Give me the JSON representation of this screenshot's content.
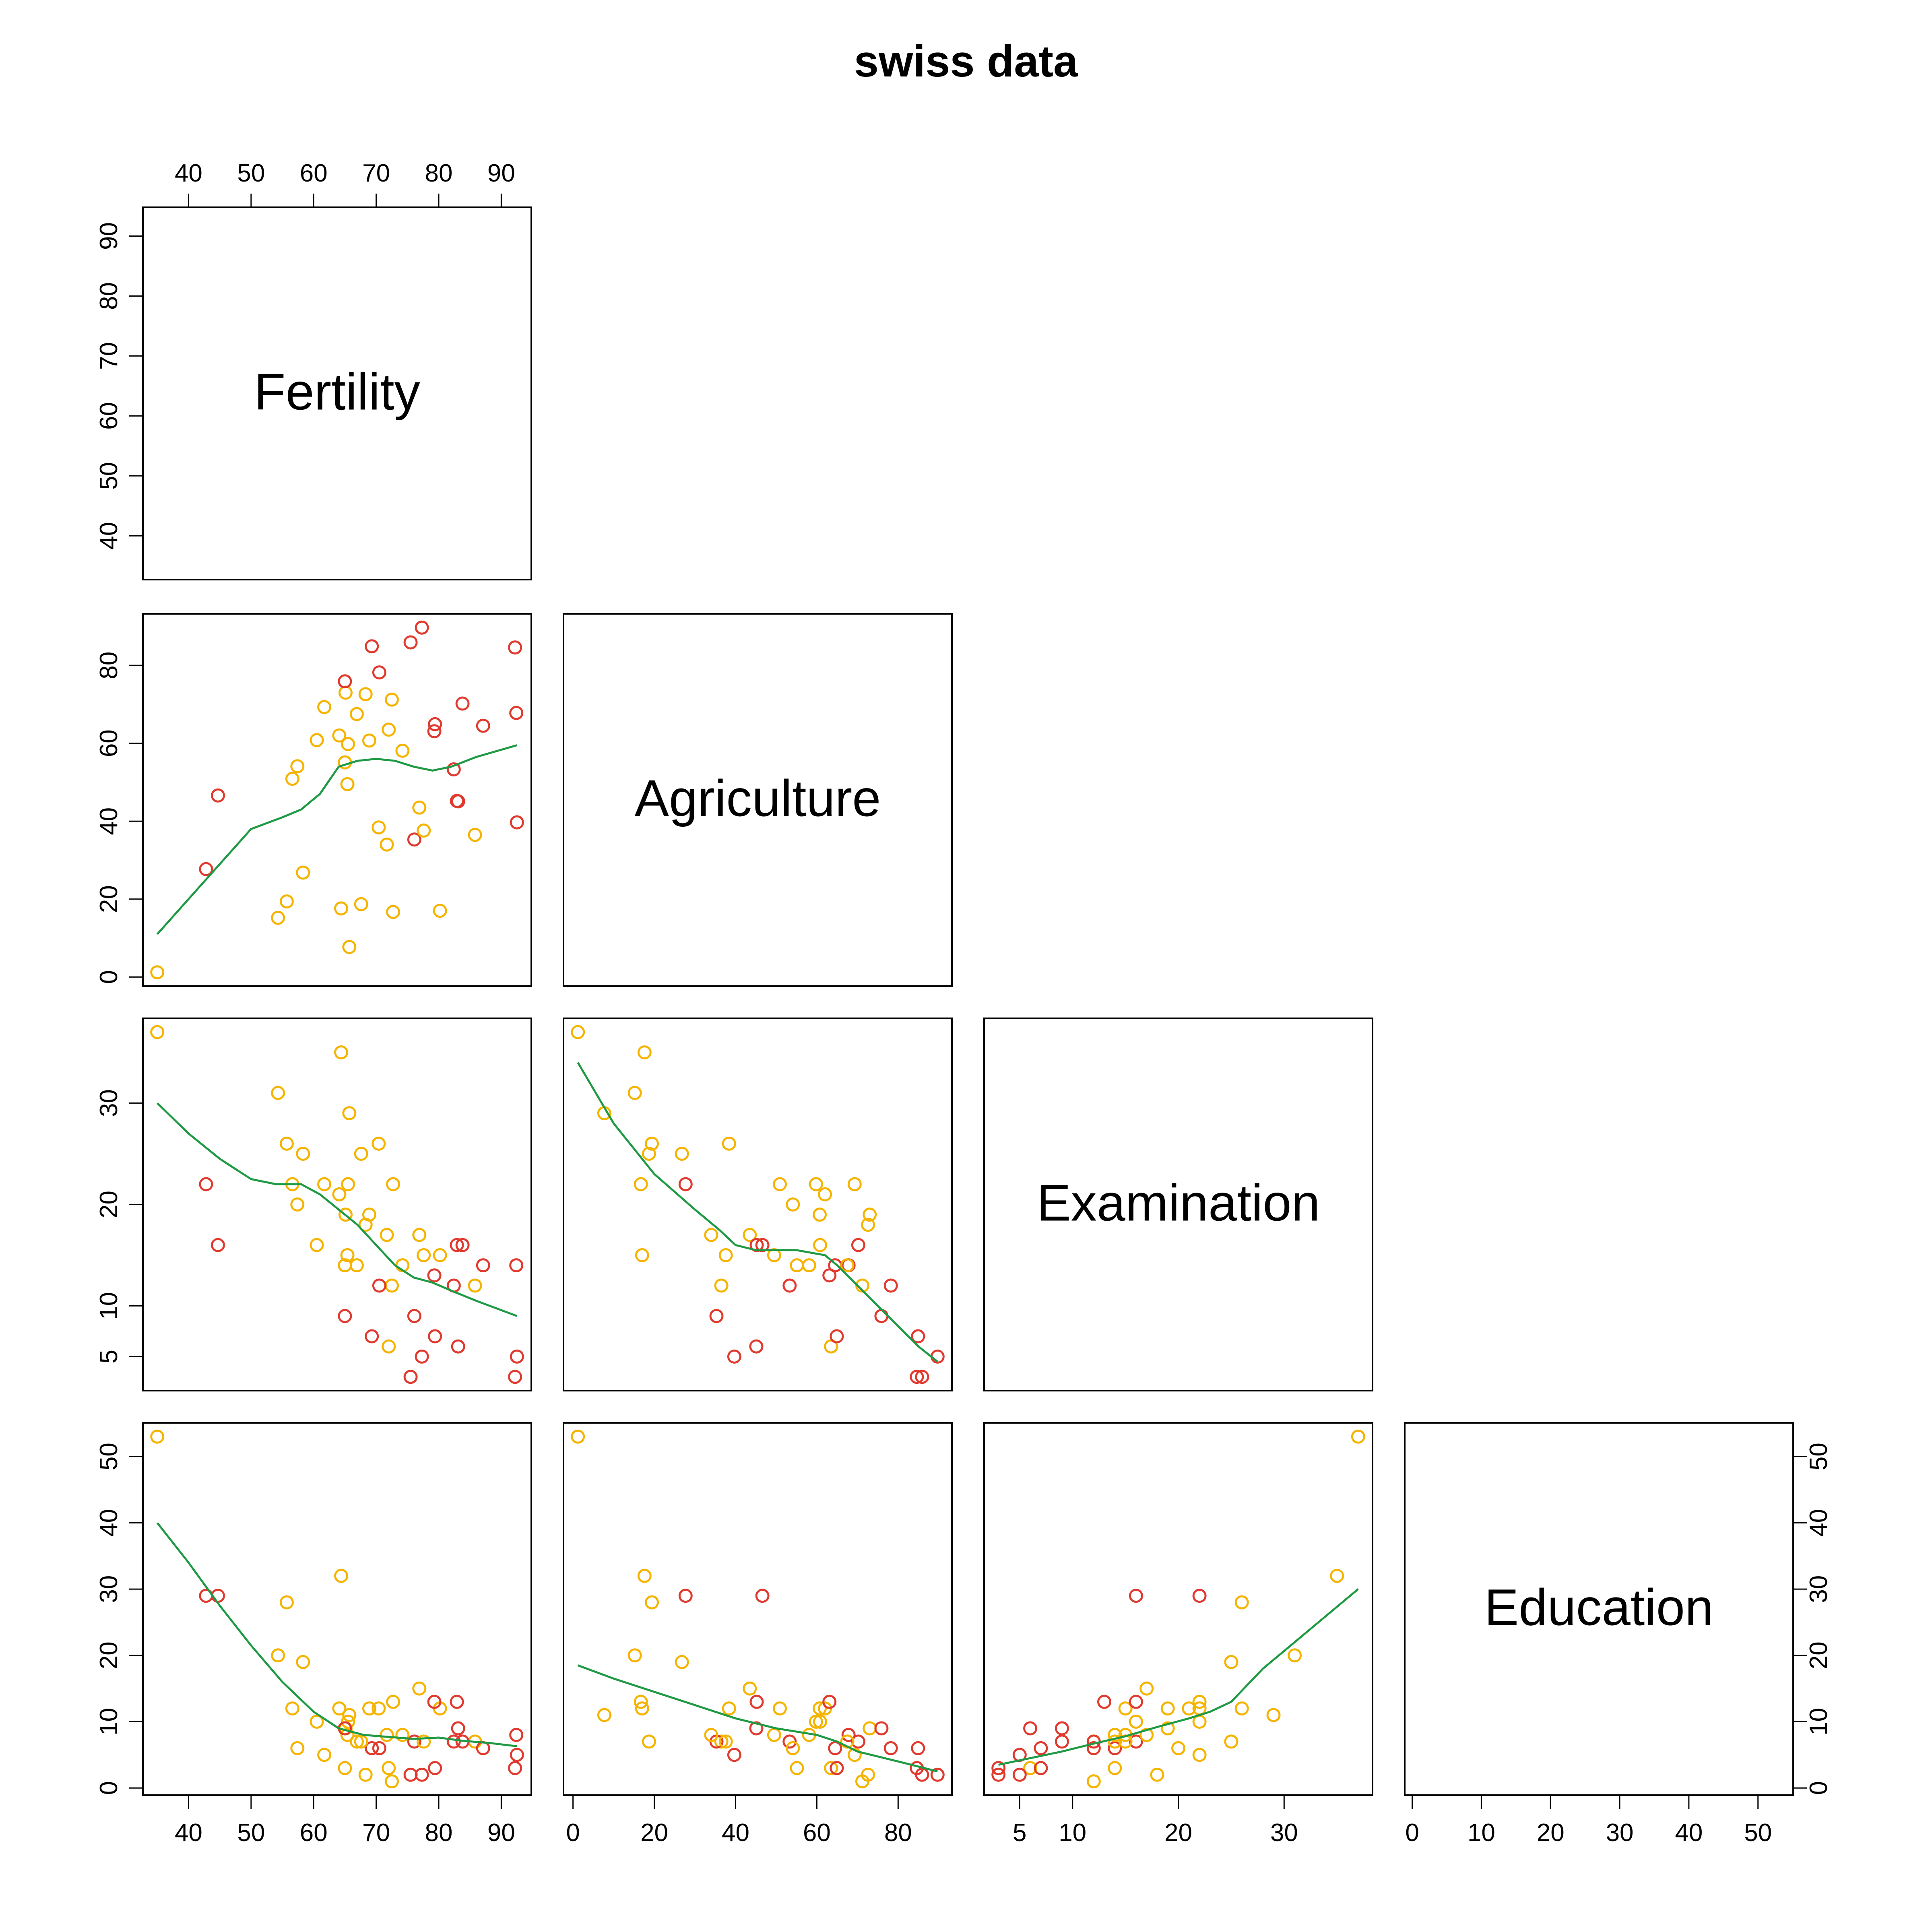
{
  "title": "swiss data",
  "variables": [
    "Fertility",
    "Agriculture",
    "Examination",
    "Education"
  ],
  "colors": {
    "low_group": "#F5B400",
    "high_group": "#E03A2F",
    "smoother": "#1F9A44",
    "frame": "#000000"
  },
  "axes": {
    "Fertility": {
      "ticks": [
        40,
        50,
        60,
        70,
        80,
        90
      ],
      "range": [
        35,
        92.5
      ]
    },
    "Agriculture": {
      "ticks": [
        0,
        20,
        40,
        60,
        80
      ],
      "range": [
        1.2,
        89.7
      ]
    },
    "Examination": {
      "ticks": [
        5,
        10,
        20,
        30
      ],
      "range": [
        3,
        37
      ]
    },
    "Education": {
      "ticks": [
        0,
        10,
        20,
        30,
        40,
        50
      ],
      "range": [
        1,
        53
      ]
    }
  },
  "chart_data": {
    "type": "scatter",
    "title": "swiss data",
    "matrix": "lower-triangle pairs plot with lowess smoother",
    "groups": [
      "yellow",
      "red"
    ],
    "observations": [
      {
        "Fertility": 80.2,
        "Agriculture": 17.0,
        "Examination": 15,
        "Education": 12,
        "group": "yellow"
      },
      {
        "Fertility": 83.1,
        "Agriculture": 45.1,
        "Examination": 6,
        "Education": 9,
        "group": "red"
      },
      {
        "Fertility": 92.5,
        "Agriculture": 39.7,
        "Examination": 5,
        "Education": 5,
        "group": "red"
      },
      {
        "Fertility": 85.8,
        "Agriculture": 36.5,
        "Examination": 12,
        "Education": 7,
        "group": "yellow"
      },
      {
        "Fertility": 76.9,
        "Agriculture": 43.5,
        "Examination": 17,
        "Education": 15,
        "group": "yellow"
      },
      {
        "Fertility": 76.1,
        "Agriculture": 35.3,
        "Examination": 9,
        "Education": 7,
        "group": "red"
      },
      {
        "Fertility": 83.8,
        "Agriculture": 70.2,
        "Examination": 16,
        "Education": 7,
        "group": "red"
      },
      {
        "Fertility": 92.4,
        "Agriculture": 67.8,
        "Examination": 14,
        "Education": 8,
        "group": "red"
      },
      {
        "Fertility": 82.4,
        "Agriculture": 53.3,
        "Examination": 12,
        "Education": 7,
        "group": "red"
      },
      {
        "Fertility": 82.9,
        "Agriculture": 45.2,
        "Examination": 16,
        "Education": 13,
        "group": "red"
      },
      {
        "Fertility": 87.1,
        "Agriculture": 64.5,
        "Examination": 14,
        "Education": 6,
        "group": "red"
      },
      {
        "Fertility": 64.1,
        "Agriculture": 62.0,
        "Examination": 21,
        "Education": 12,
        "group": "yellow"
      },
      {
        "Fertility": 66.9,
        "Agriculture": 67.5,
        "Examination": 14,
        "Education": 7,
        "group": "yellow"
      },
      {
        "Fertility": 68.9,
        "Agriculture": 60.7,
        "Examination": 19,
        "Education": 12,
        "group": "yellow"
      },
      {
        "Fertility": 61.7,
        "Agriculture": 69.3,
        "Examination": 22,
        "Education": 5,
        "group": "yellow"
      },
      {
        "Fertility": 68.3,
        "Agriculture": 72.6,
        "Examination": 18,
        "Education": 2,
        "group": "yellow"
      },
      {
        "Fertility": 71.7,
        "Agriculture": 34.0,
        "Examination": 17,
        "Education": 8,
        "group": "yellow"
      },
      {
        "Fertility": 55.7,
        "Agriculture": 19.4,
        "Examination": 26,
        "Education": 28,
        "group": "yellow"
      },
      {
        "Fertility": 54.3,
        "Agriculture": 15.2,
        "Examination": 31,
        "Education": 20,
        "group": "yellow"
      },
      {
        "Fertility": 65.1,
        "Agriculture": 73.0,
        "Examination": 19,
        "Education": 9,
        "group": "yellow"
      },
      {
        "Fertility": 65.5,
        "Agriculture": 59.8,
        "Examination": 22,
        "Education": 10,
        "group": "yellow"
      },
      {
        "Fertility": 65.0,
        "Agriculture": 55.1,
        "Examination": 14,
        "Education": 3,
        "group": "yellow"
      },
      {
        "Fertility": 56.6,
        "Agriculture": 50.9,
        "Examination": 22,
        "Education": 12,
        "group": "yellow"
      },
      {
        "Fertility": 57.4,
        "Agriculture": 54.1,
        "Examination": 20,
        "Education": 6,
        "group": "yellow"
      },
      {
        "Fertility": 72.5,
        "Agriculture": 71.2,
        "Examination": 12,
        "Education": 1,
        "group": "yellow"
      },
      {
        "Fertility": 74.2,
        "Agriculture": 58.1,
        "Examination": 14,
        "Education": 8,
        "group": "yellow"
      },
      {
        "Fertility": 72.0,
        "Agriculture": 63.5,
        "Examination": 6,
        "Education": 3,
        "group": "yellow"
      },
      {
        "Fertility": 60.5,
        "Agriculture": 60.8,
        "Examination": 16,
        "Education": 10,
        "group": "yellow"
      },
      {
        "Fertility": 58.3,
        "Agriculture": 26.8,
        "Examination": 25,
        "Education": 19,
        "group": "yellow"
      },
      {
        "Fertility": 65.4,
        "Agriculture": 49.5,
        "Examination": 15,
        "Education": 8,
        "group": "yellow"
      },
      {
        "Fertility": 75.5,
        "Agriculture": 85.9,
        "Examination": 3,
        "Education": 2,
        "group": "red"
      },
      {
        "Fertility": 69.3,
        "Agriculture": 84.9,
        "Examination": 7,
        "Education": 6,
        "group": "red"
      },
      {
        "Fertility": 77.3,
        "Agriculture": 89.7,
        "Examination": 5,
        "Education": 2,
        "group": "red"
      },
      {
        "Fertility": 70.5,
        "Agriculture": 78.2,
        "Examination": 12,
        "Education": 6,
        "group": "red"
      },
      {
        "Fertility": 79.4,
        "Agriculture": 64.9,
        "Examination": 7,
        "Education": 3,
        "group": "red"
      },
      {
        "Fertility": 65.0,
        "Agriculture": 75.9,
        "Examination": 9,
        "Education": 9,
        "group": "red"
      },
      {
        "Fertility": 92.2,
        "Agriculture": 84.6,
        "Examination": 3,
        "Education": 3,
        "group": "red"
      },
      {
        "Fertility": 79.3,
        "Agriculture": 63.1,
        "Examination": 13,
        "Education": 13,
        "group": "red"
      },
      {
        "Fertility": 70.4,
        "Agriculture": 38.4,
        "Examination": 26,
        "Education": 12,
        "group": "yellow"
      },
      {
        "Fertility": 65.7,
        "Agriculture": 7.7,
        "Examination": 29,
        "Education": 11,
        "group": "yellow"
      },
      {
        "Fertility": 72.7,
        "Agriculture": 16.7,
        "Examination": 22,
        "Education": 13,
        "group": "yellow"
      },
      {
        "Fertility": 64.4,
        "Agriculture": 17.6,
        "Examination": 35,
        "Education": 32,
        "group": "yellow"
      },
      {
        "Fertility": 77.6,
        "Agriculture": 37.6,
        "Examination": 15,
        "Education": 7,
        "group": "yellow"
      },
      {
        "Fertility": 67.6,
        "Agriculture": 18.7,
        "Examination": 25,
        "Education": 7,
        "group": "yellow"
      },
      {
        "Fertility": 35.0,
        "Agriculture": 1.2,
        "Examination": 37,
        "Education": 53,
        "group": "yellow"
      },
      {
        "Fertility": 44.7,
        "Agriculture": 46.6,
        "Examination": 16,
        "Education": 29,
        "group": "red"
      },
      {
        "Fertility": 42.8,
        "Agriculture": 27.7,
        "Examination": 22,
        "Education": 29,
        "group": "red"
      }
    ],
    "smoothers": {
      "Agriculture~Fertility": [
        [
          35,
          11
        ],
        [
          40,
          20
        ],
        [
          45,
          29
        ],
        [
          50,
          38
        ],
        [
          55,
          41
        ],
        [
          58,
          43
        ],
        [
          61,
          47
        ],
        [
          64,
          54
        ],
        [
          67,
          55.5
        ],
        [
          70,
          56
        ],
        [
          73,
          55.5
        ],
        [
          76,
          54
        ],
        [
          79,
          53
        ],
        [
          82,
          54
        ],
        [
          86,
          56.5
        ],
        [
          92.5,
          59.5
        ]
      ],
      "Examination~Fertility": [
        [
          35,
          30
        ],
        [
          40,
          27
        ],
        [
          45,
          24.5
        ],
        [
          50,
          22.5
        ],
        [
          54,
          22
        ],
        [
          58,
          22
        ],
        [
          61,
          21
        ],
        [
          64,
          19.5
        ],
        [
          67,
          18
        ],
        [
          70,
          16
        ],
        [
          73,
          14
        ],
        [
          76,
          12.8
        ],
        [
          79,
          12.3
        ],
        [
          82,
          11.5
        ],
        [
          86,
          10.5
        ],
        [
          92.5,
          9
        ]
      ],
      "Examination~Agriculture": [
        [
          1.2,
          34
        ],
        [
          10,
          28
        ],
        [
          20,
          23
        ],
        [
          30,
          19.5
        ],
        [
          36,
          17.5
        ],
        [
          40,
          16
        ],
        [
          45,
          15.5
        ],
        [
          55,
          15.5
        ],
        [
          62,
          15
        ],
        [
          65,
          14
        ],
        [
          70,
          12
        ],
        [
          75,
          10
        ],
        [
          80,
          8
        ],
        [
          85,
          6
        ],
        [
          89.7,
          4.5
        ]
      ],
      "Education~Fertility": [
        [
          35,
          40
        ],
        [
          40,
          34
        ],
        [
          45,
          27.5
        ],
        [
          50,
          21.5
        ],
        [
          55,
          16
        ],
        [
          60,
          11.5
        ],
        [
          64,
          9
        ],
        [
          68,
          8
        ],
        [
          72,
          7.7
        ],
        [
          76,
          7.4
        ],
        [
          80,
          7.6
        ],
        [
          84,
          7.1
        ],
        [
          88,
          6.8
        ],
        [
          92.5,
          6.3
        ]
      ],
      "Education~Agriculture": [
        [
          1.2,
          18.5
        ],
        [
          10,
          16.5
        ],
        [
          20,
          14.5
        ],
        [
          30,
          12.5
        ],
        [
          40,
          10.5
        ],
        [
          50,
          9
        ],
        [
          55,
          8.5
        ],
        [
          60,
          8
        ],
        [
          65,
          7
        ],
        [
          70,
          5.5
        ],
        [
          80,
          4
        ],
        [
          89.7,
          2.5
        ]
      ],
      "Education~Examination": [
        [
          3,
          3.5
        ],
        [
          6,
          4.5
        ],
        [
          9,
          5.5
        ],
        [
          12,
          6.7
        ],
        [
          15,
          7.8
        ],
        [
          18,
          9.2
        ],
        [
          21,
          10.5
        ],
        [
          23,
          11.5
        ],
        [
          25,
          13
        ],
        [
          28,
          18
        ],
        [
          31,
          22
        ],
        [
          34,
          26
        ],
        [
          37,
          30
        ]
      ]
    }
  }
}
